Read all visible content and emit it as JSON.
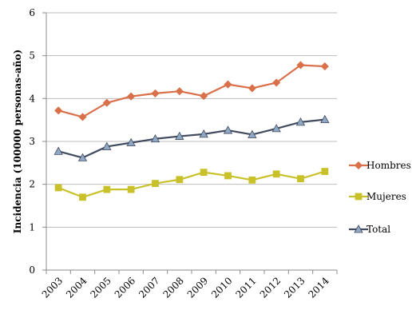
{
  "chart_data": {
    "type": "line",
    "title": "",
    "xlabel": "",
    "ylabel": "Incidencia (100000 personas-año)",
    "x": [
      "2003",
      "2004",
      "2005",
      "2006",
      "2007",
      "2008",
      "2009",
      "2010",
      "2011",
      "2012",
      "2013",
      "2014"
    ],
    "ylim": [
      0,
      6
    ],
    "yticks": [
      "0",
      "1",
      "2",
      "3",
      "4",
      "5",
      "6"
    ],
    "grid": "horizontal",
    "legend": "right",
    "series": [
      {
        "name": "Hombres",
        "marker": "diamond",
        "color": "#d9704a",
        "values": [
          3.72,
          3.57,
          3.9,
          4.05,
          4.12,
          4.17,
          4.06,
          4.33,
          4.24,
          4.37,
          4.78,
          4.75
        ]
      },
      {
        "name": "Mujeres",
        "marker": "square",
        "color": "#c9c12a",
        "values": [
          1.92,
          1.7,
          1.88,
          1.88,
          2.02,
          2.11,
          2.28,
          2.2,
          2.1,
          2.24,
          2.13,
          2.3
        ]
      },
      {
        "name": "Total",
        "marker": "triangle",
        "color": "#414a5e",
        "marker_color": "#8fa8c4",
        "values": [
          2.77,
          2.62,
          2.88,
          2.97,
          3.06,
          3.12,
          3.17,
          3.26,
          3.16,
          3.3,
          3.45,
          3.51
        ]
      }
    ]
  }
}
